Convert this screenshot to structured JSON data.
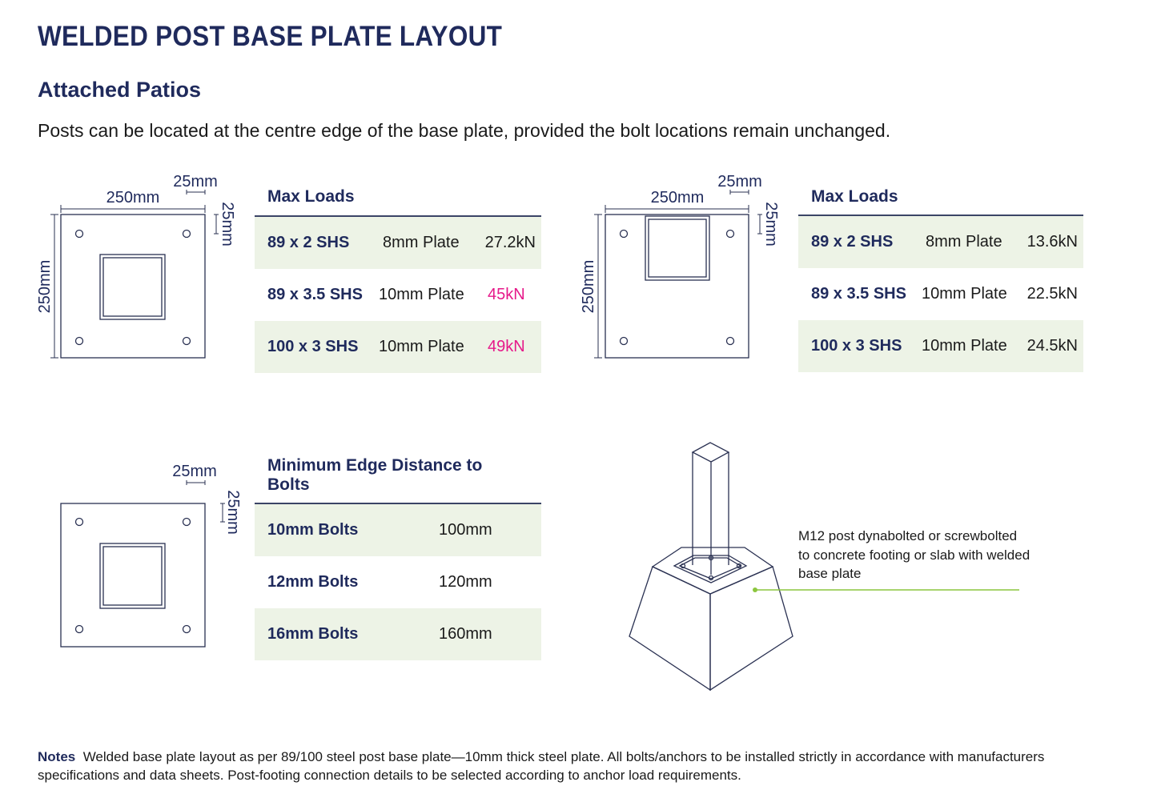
{
  "header": {
    "title": "WELDED POST BASE PLATE LAYOUT",
    "subtitle": "Attached Patios",
    "intro": "Posts can be located at the centre edge of the base plate, provided the bolt locations remain unchanged."
  },
  "diagram_centre": {
    "width_label": "250mm",
    "edge_top_label": "25mm",
    "edge_side_label": "25mm",
    "height_label": "250mm"
  },
  "table_centre": {
    "heading": "Max Loads",
    "rows": [
      [
        "89 x 2 SHS",
        "8mm Plate",
        "27.2kN"
      ],
      [
        "89 x 3.5 SHS",
        "10mm Plate",
        "45kN"
      ],
      [
        "100 x 3 SHS",
        "10mm Plate",
        "49kN"
      ]
    ]
  },
  "diagram_edge": {
    "width_label": "250mm",
    "edge_top_label": "25mm",
    "edge_side_label": "25mm",
    "height_label": "250mm"
  },
  "table_edge": {
    "heading": "Max Loads",
    "rows": [
      [
        "89 x 2 SHS",
        "8mm Plate",
        "13.6kN"
      ],
      [
        "89 x 3.5 SHS",
        "10mm Plate",
        "22.5kN"
      ],
      [
        "100 x 3 SHS",
        "10mm Plate",
        "24.5kN"
      ]
    ]
  },
  "diagram_bolts": {
    "edge_top_label": "25mm",
    "edge_side_label": "25mm"
  },
  "table_bolts": {
    "heading": "Minimum Edge Distance to Bolts",
    "rows": [
      [
        "10mm Bolts",
        "100mm"
      ],
      [
        "12mm Bolts",
        "120mm"
      ],
      [
        "16mm Bolts",
        "160mm"
      ]
    ]
  },
  "footing": {
    "callout": "M12 post dynabolted or screwbolted to concrete footing or slab with welded base plate"
  },
  "notes": {
    "label": "Notes",
    "text": "Welded base plate layout as per 89/100 steel post base plate—10mm thick steel plate. All bolts/anchors to be installed strictly in accordance with manufacturers specifications and data sheets. Post-footing connection details to be selected according to anchor load requirements."
  }
}
